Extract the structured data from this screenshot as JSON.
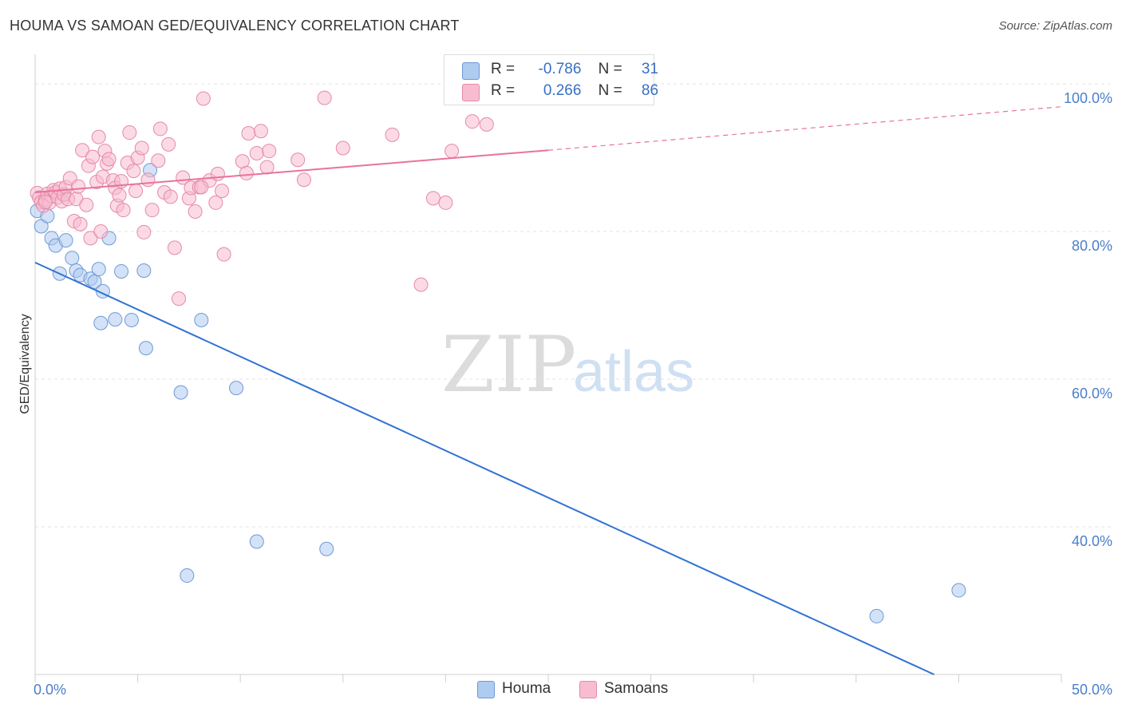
{
  "title": "HOUMA VS SAMOAN GED/EQUIVALENCY CORRELATION CHART",
  "source": "Source: ZipAtlas.com",
  "watermark": {
    "zip": "ZIP",
    "atlas": "atlas"
  },
  "legend": {
    "rows": [
      {
        "r_label": "R =",
        "r_value": "-0.786",
        "n_label": "N =",
        "n_value": "31",
        "color": "#aecbf0",
        "stroke": "#6f9ad6"
      },
      {
        "r_label": "R =",
        "r_value": "0.266",
        "n_label": "N =",
        "n_value": "86",
        "color": "#f8bcd0",
        "stroke": "#e48aa8"
      }
    ]
  },
  "bottom_legend": {
    "houma": "Houma",
    "samoans": "Samoans"
  },
  "colors": {
    "houma_fill": "#aecbf0",
    "houma_stroke": "#6f9ad6",
    "houma_line": "#2f73d2",
    "samoan_fill": "#f8bcd0",
    "samoan_stroke": "#e48aa8",
    "samoan_line": "#e8739a",
    "tick_text": "#4a7fc9"
  },
  "chart_data": {
    "type": "scatter",
    "title": "HOUMA VS SAMOAN GED/EQUIVALENCY CORRELATION CHART",
    "xlabel": "",
    "ylabel": "GED/Equivalency",
    "xlim": [
      0,
      50
    ],
    "ylim": [
      20,
      104
    ],
    "x_ticks": [
      "0.0%",
      "50.0%"
    ],
    "y_ticks": [
      {
        "value": 100,
        "label": "100.0%"
      },
      {
        "value": 80,
        "label": "80.0%"
      },
      {
        "value": 60,
        "label": "60.0%"
      },
      {
        "value": 40,
        "label": "40.0%"
      }
    ],
    "grid": true,
    "series": [
      {
        "name": "Houma",
        "points": [
          [
            0.1,
            82.8
          ],
          [
            0.3,
            80.7
          ],
          [
            0.6,
            82.1
          ],
          [
            0.8,
            79.1
          ],
          [
            1.0,
            78.1
          ],
          [
            1.5,
            78.8
          ],
          [
            1.2,
            74.3
          ],
          [
            1.8,
            76.4
          ],
          [
            2.0,
            74.7
          ],
          [
            2.2,
            74.1
          ],
          [
            2.7,
            73.6
          ],
          [
            2.9,
            73.2
          ],
          [
            3.1,
            74.9
          ],
          [
            3.3,
            71.9
          ],
          [
            3.2,
            67.6
          ],
          [
            3.6,
            79.1
          ],
          [
            3.9,
            68.1
          ],
          [
            4.2,
            74.6
          ],
          [
            4.7,
            68.0
          ],
          [
            5.3,
            74.7
          ],
          [
            5.4,
            64.2
          ],
          [
            5.6,
            88.3
          ],
          [
            7.1,
            58.2
          ],
          [
            7.4,
            33.4
          ],
          [
            8.1,
            68.0
          ],
          [
            9.8,
            58.8
          ],
          [
            10.8,
            38.0
          ],
          [
            14.2,
            37.0
          ],
          [
            41.0,
            27.9
          ],
          [
            45.0,
            31.4
          ],
          [
            1.4,
            85.0
          ]
        ],
        "trend": {
          "x": [
            0,
            43.8
          ],
          "y": [
            75.8,
            20.0
          ]
        }
      },
      {
        "name": "Samoans",
        "points": [
          [
            0.1,
            85.2
          ],
          [
            0.2,
            84.6
          ],
          [
            0.3,
            84.0
          ],
          [
            0.4,
            83.5
          ],
          [
            0.5,
            84.3
          ],
          [
            0.6,
            85.1
          ],
          [
            0.7,
            83.9
          ],
          [
            0.8,
            84.8
          ],
          [
            0.9,
            85.6
          ],
          [
            1.0,
            85.3
          ],
          [
            1.1,
            84.6
          ],
          [
            1.2,
            85.8
          ],
          [
            1.3,
            84.1
          ],
          [
            1.4,
            85.0
          ],
          [
            1.5,
            86.0
          ],
          [
            1.6,
            84.4
          ],
          [
            1.7,
            87.2
          ],
          [
            1.9,
            81.4
          ],
          [
            2.0,
            84.4
          ],
          [
            2.1,
            86.1
          ],
          [
            2.2,
            81.0
          ],
          [
            2.3,
            91.0
          ],
          [
            2.5,
            83.6
          ],
          [
            2.6,
            88.9
          ],
          [
            2.7,
            79.1
          ],
          [
            2.8,
            90.1
          ],
          [
            3.0,
            86.7
          ],
          [
            3.1,
            92.8
          ],
          [
            3.2,
            80.0
          ],
          [
            3.3,
            87.4
          ],
          [
            3.4,
            90.9
          ],
          [
            3.5,
            89.2
          ],
          [
            3.6,
            89.8
          ],
          [
            3.8,
            86.9
          ],
          [
            3.9,
            85.9
          ],
          [
            4.0,
            83.5
          ],
          [
            4.1,
            84.9
          ],
          [
            4.2,
            86.8
          ],
          [
            4.3,
            82.9
          ],
          [
            4.5,
            89.3
          ],
          [
            4.6,
            93.4
          ],
          [
            4.8,
            88.2
          ],
          [
            4.9,
            85.5
          ],
          [
            5.0,
            90.0
          ],
          [
            5.2,
            91.3
          ],
          [
            5.3,
            79.9
          ],
          [
            5.5,
            87.0
          ],
          [
            5.7,
            82.9
          ],
          [
            6.0,
            89.6
          ],
          [
            6.1,
            93.9
          ],
          [
            6.3,
            85.3
          ],
          [
            6.5,
            91.8
          ],
          [
            6.6,
            84.7
          ],
          [
            6.8,
            77.8
          ],
          [
            7.0,
            70.9
          ],
          [
            7.2,
            87.3
          ],
          [
            7.5,
            84.5
          ],
          [
            7.6,
            85.9
          ],
          [
            7.8,
            82.7
          ],
          [
            8.0,
            86.0
          ],
          [
            8.2,
            98.0
          ],
          [
            8.5,
            86.9
          ],
          [
            8.8,
            83.9
          ],
          [
            8.9,
            87.8
          ],
          [
            9.1,
            85.5
          ],
          [
            9.2,
            76.9
          ],
          [
            10.1,
            89.5
          ],
          [
            10.3,
            87.9
          ],
          [
            10.4,
            93.3
          ],
          [
            10.8,
            90.6
          ],
          [
            11.0,
            93.6
          ],
          [
            11.3,
            88.7
          ],
          [
            11.4,
            90.9
          ],
          [
            12.8,
            89.7
          ],
          [
            13.1,
            87.0
          ],
          [
            14.1,
            98.1
          ],
          [
            15.0,
            91.3
          ],
          [
            17.4,
            93.1
          ],
          [
            18.8,
            72.8
          ],
          [
            19.4,
            84.5
          ],
          [
            20.0,
            83.9
          ],
          [
            20.3,
            90.9
          ],
          [
            21.3,
            94.9
          ],
          [
            22.0,
            94.5
          ],
          [
            8.1,
            86.0
          ],
          [
            0.5,
            84.0
          ]
        ],
        "trend": {
          "x": [
            0,
            25
          ],
          "y": [
            85.3,
            91.0
          ]
        },
        "trend_dashed": {
          "x": [
            25,
            50
          ],
          "y": [
            91.0,
            96.9
          ]
        }
      }
    ]
  }
}
